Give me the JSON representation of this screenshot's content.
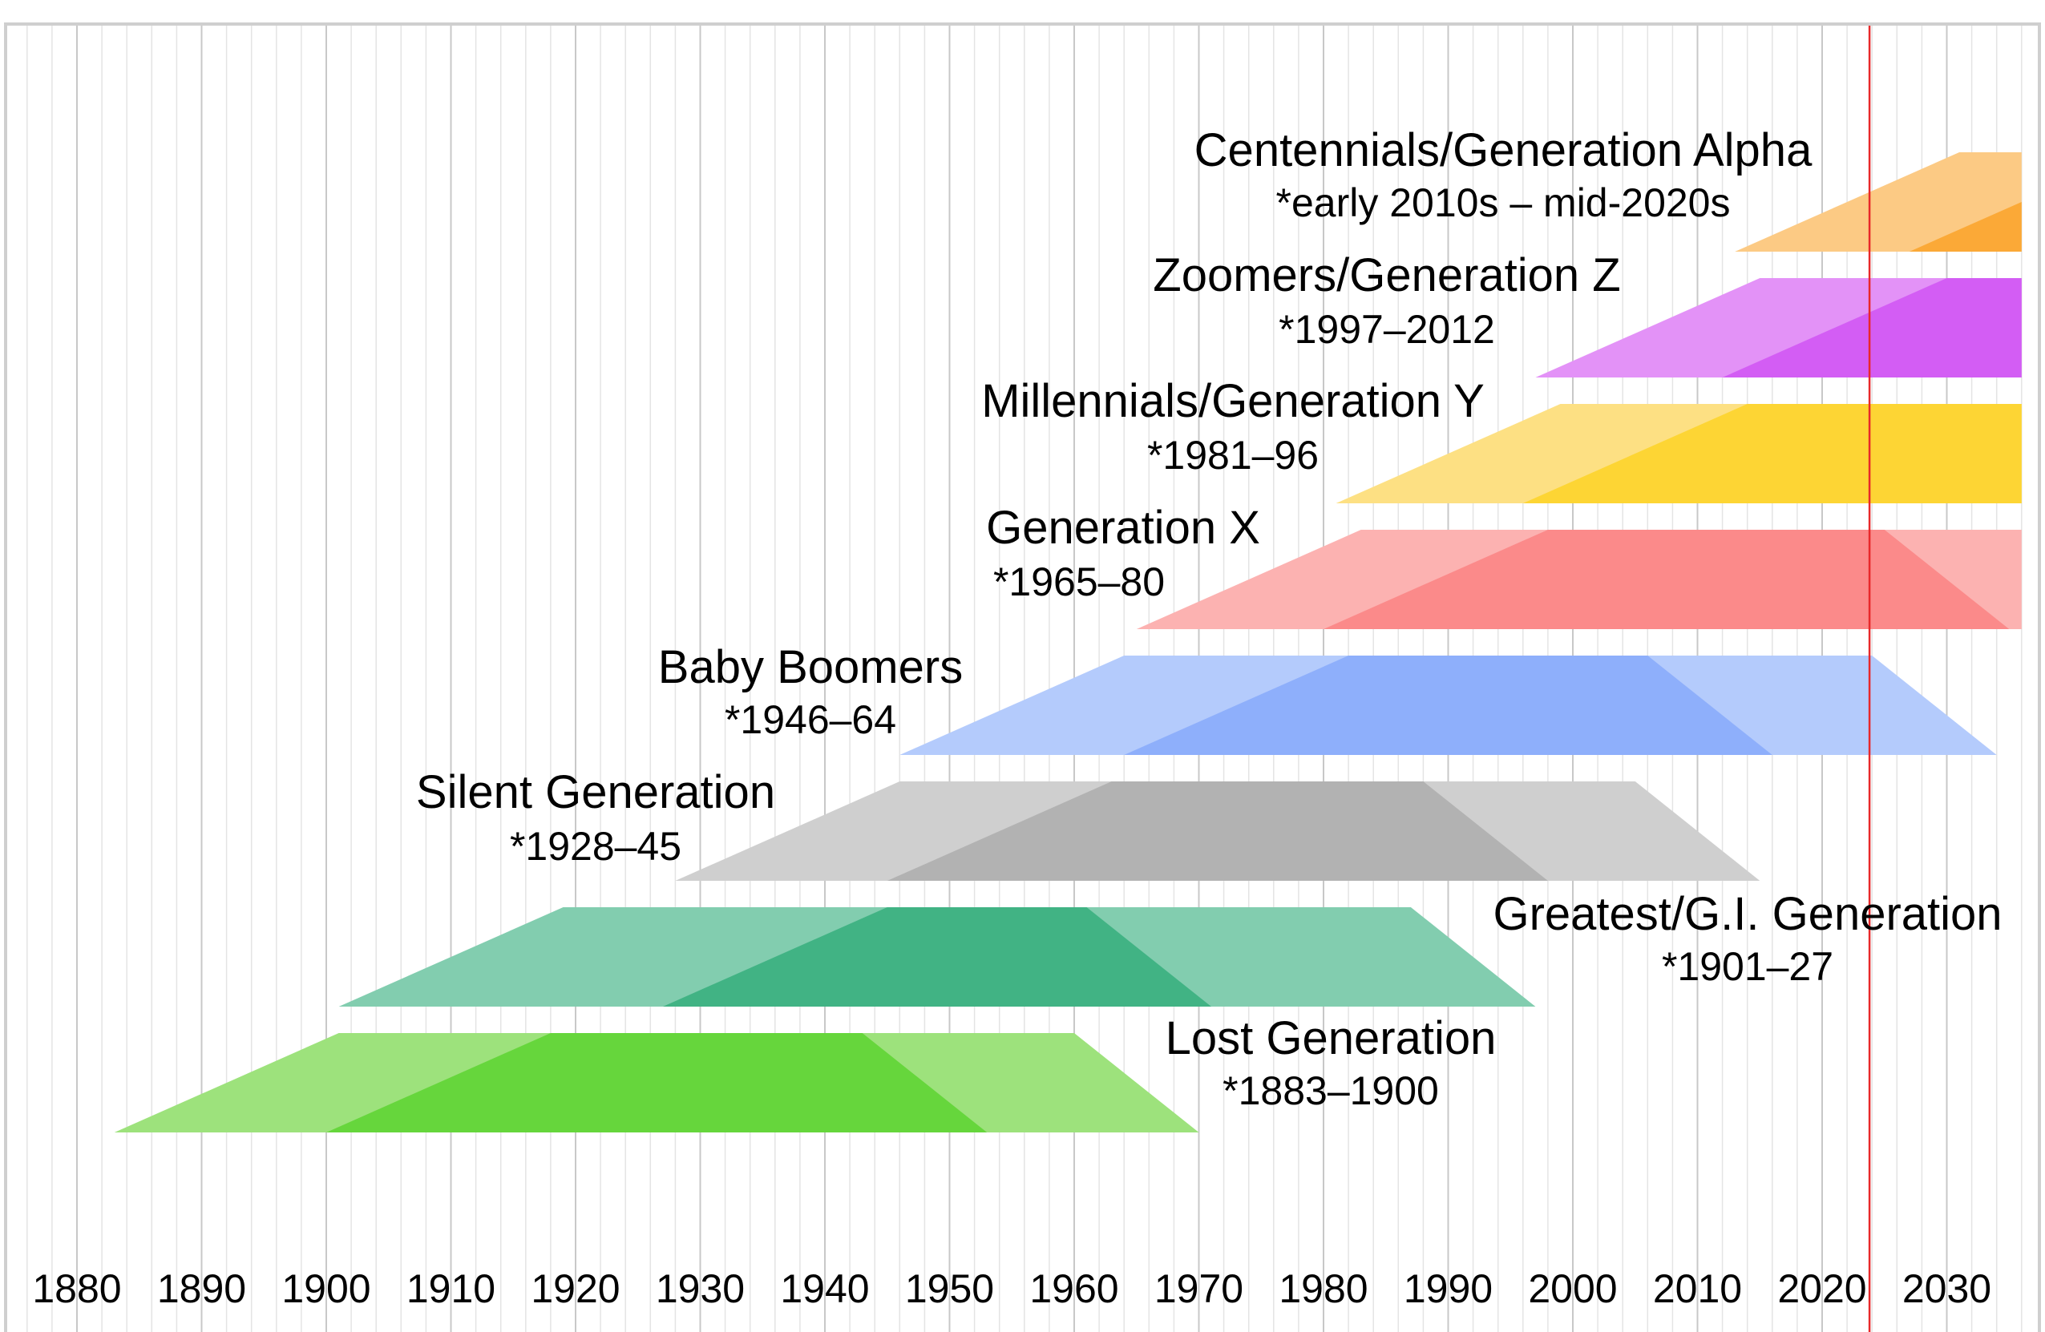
{
  "chart_data": {
    "type": "area",
    "x_axis": {
      "range": [
        1870,
        2036
      ],
      "ticks": [
        1880,
        1890,
        1900,
        1910,
        1920,
        1930,
        1940,
        1950,
        1960,
        1970,
        1980,
        1990,
        2000,
        2010,
        2020,
        2030
      ],
      "minor_gridline_step": 2
    },
    "current_year_marker": 2023.8,
    "colors": {
      "marker": "#e8282a",
      "grid_major": "#c8c8c8",
      "grid_minor": "#e4e4e4",
      "frame": "#cfcfcf"
    },
    "generations": [
      {
        "name": "Centennials/Generation Alpha",
        "years": "*early 2010s – mid-2020s",
        "birth_start": 2013,
        "birth_end": 2025,
        "light_shape": [
          [
            2013,
            0
          ],
          [
            2031,
            1
          ],
          [
            2036,
            1
          ],
          [
            2036,
            0
          ]
        ],
        "dark_shape": [
          [
            2027,
            0
          ],
          [
            2036,
            0.5
          ],
          [
            2036,
            0
          ]
        ],
        "color_light": "#fcca84",
        "color_dark": "#fba937"
      },
      {
        "name": "Zoomers/Generation Z",
        "years": "*1997–2012",
        "birth_start": 1997,
        "birth_end": 2012,
        "light_shape": [
          [
            1997,
            0
          ],
          [
            2015,
            1
          ],
          [
            2036,
            1
          ],
          [
            2036,
            0
          ]
        ],
        "dark_shape": [
          [
            2012,
            0
          ],
          [
            2030,
            1
          ],
          [
            2036,
            1
          ],
          [
            2036,
            0
          ]
        ],
        "color_light": "#e392f7",
        "color_dark": "#d35df4"
      },
      {
        "name": "Millennials/Generation Y",
        "years": "*1981–96",
        "birth_start": 1981,
        "birth_end": 1996,
        "light_shape": [
          [
            1981,
            0
          ],
          [
            1999,
            1
          ],
          [
            2036,
            1
          ],
          [
            2036,
            0
          ]
        ],
        "dark_shape": [
          [
            1996,
            0
          ],
          [
            2014,
            1
          ],
          [
            2036,
            1
          ],
          [
            2036,
            0
          ]
        ],
        "color_light": "#fde083",
        "color_dark": "#fdd534"
      },
      {
        "name": "Generation X",
        "years": "*1965–80",
        "birth_start": 1965,
        "birth_end": 1980,
        "light_shape": [
          [
            1965,
            0
          ],
          [
            1983,
            1
          ],
          [
            2036,
            1
          ],
          [
            2036,
            0
          ]
        ],
        "dark_shape": [
          [
            1980,
            0
          ],
          [
            1998,
            1
          ],
          [
            2025,
            1
          ],
          [
            2035,
            0
          ]
        ],
        "color_light": "#fcb2b1",
        "color_dark": "#fb8a8a"
      },
      {
        "name": "Baby Boomers",
        "years": "*1946–64",
        "birth_start": 1946,
        "birth_end": 1964,
        "light_shape": [
          [
            1946,
            0
          ],
          [
            1964,
            1
          ],
          [
            2024,
            1
          ],
          [
            2034,
            0
          ]
        ],
        "dark_shape": [
          [
            1964,
            0
          ],
          [
            1982,
            1
          ],
          [
            2006,
            1
          ],
          [
            2016,
            0
          ]
        ],
        "color_light": "#b4cbfc",
        "color_dark": "#8eaffb"
      },
      {
        "name": "Silent Generation",
        "years": "*1928–45",
        "birth_start": 1928,
        "birth_end": 1945,
        "light_shape": [
          [
            1928,
            0
          ],
          [
            1946,
            1
          ],
          [
            2005,
            1
          ],
          [
            2015,
            0
          ]
        ],
        "dark_shape": [
          [
            1945,
            0
          ],
          [
            1963,
            1
          ],
          [
            1988,
            1
          ],
          [
            1998,
            0
          ]
        ],
        "color_light": "#cfcfcf",
        "color_dark": "#b2b2b2"
      },
      {
        "name": "Greatest/G.I. Generation",
        "years": "*1901–27",
        "birth_start": 1901,
        "birth_end": 1927,
        "light_shape": [
          [
            1901,
            0
          ],
          [
            1919,
            1
          ],
          [
            1987,
            1
          ],
          [
            1997,
            0
          ]
        ],
        "dark_shape": [
          [
            1927,
            0
          ],
          [
            1945,
            1
          ],
          [
            1961,
            1
          ],
          [
            1971,
            0
          ]
        ],
        "color_light": "#82cdaf",
        "color_dark": "#41b384"
      },
      {
        "name": "Lost Generation",
        "years": "*1883–1900",
        "birth_start": 1883,
        "birth_end": 1900,
        "light_shape": [
          [
            1883,
            0
          ],
          [
            1901,
            1
          ],
          [
            1960,
            1
          ],
          [
            1970,
            0
          ]
        ],
        "dark_shape": [
          [
            1900,
            0
          ],
          [
            1918,
            1
          ],
          [
            1943,
            1
          ],
          [
            1953,
            0
          ]
        ],
        "color_light": "#9de27c",
        "color_dark": "#66d63c"
      }
    ]
  }
}
